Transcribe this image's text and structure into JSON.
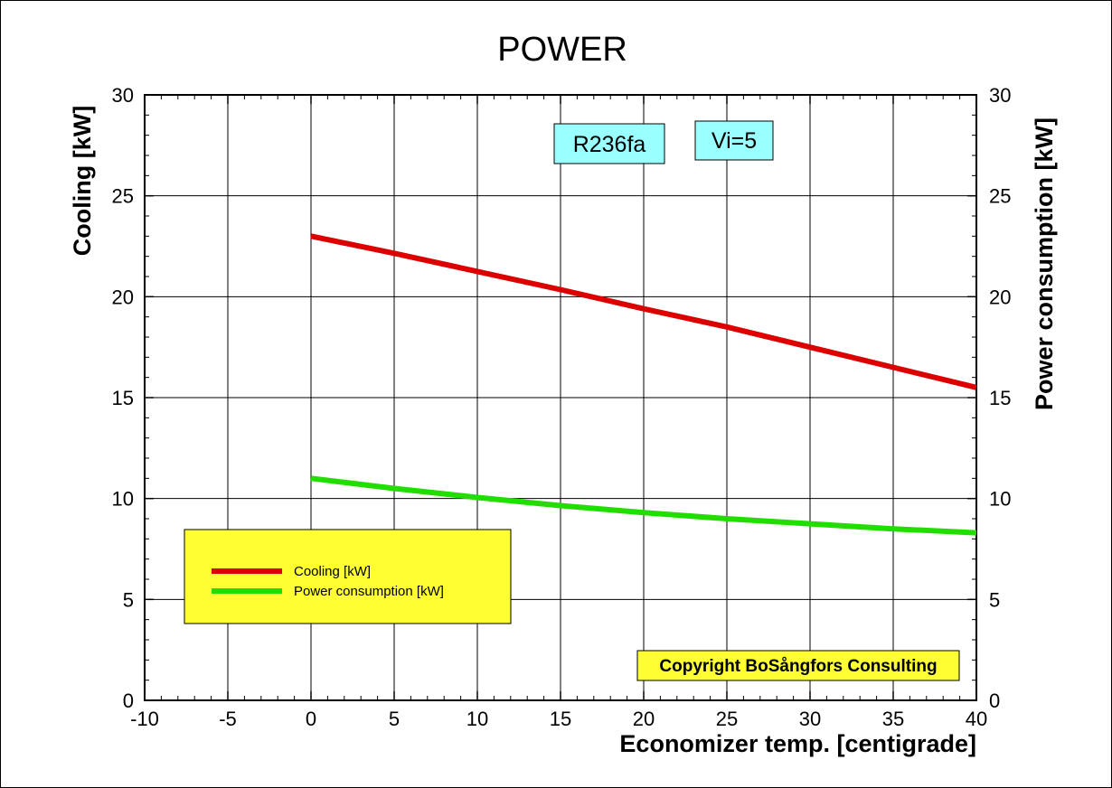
{
  "chart_data": {
    "type": "line",
    "title": "POWER",
    "xlabel": "Economizer temp. [centigrade]",
    "ylabel": "Cooling [kW]",
    "y2label": "Power consumption [kW]",
    "xlim": [
      -10,
      40
    ],
    "ylim": [
      0,
      30
    ],
    "y2lim": [
      0,
      30
    ],
    "x_ticks": [
      -10,
      -5,
      0,
      5,
      10,
      15,
      20,
      25,
      30,
      35,
      40
    ],
    "y_ticks": [
      0,
      5,
      10,
      15,
      20,
      25,
      30
    ],
    "grid": true,
    "legend_position": "bottom-left",
    "series": [
      {
        "name": "Cooling [kW]",
        "color": "#dd0000",
        "x": [
          0,
          5,
          10,
          15,
          20,
          25,
          30,
          35,
          40
        ],
        "values": [
          23.0,
          22.15,
          21.25,
          20.35,
          19.4,
          18.5,
          17.5,
          16.5,
          15.5
        ]
      },
      {
        "name": "Power consumption [kW]",
        "color": "#22dd00",
        "x": [
          0,
          5,
          10,
          15,
          20,
          25,
          30,
          35,
          40
        ],
        "values": [
          11.0,
          10.5,
          10.05,
          9.65,
          9.3,
          9.0,
          8.75,
          8.5,
          8.3
        ]
      }
    ],
    "annotations": [
      {
        "text": "R236fa",
        "color": "#99ffff"
      },
      {
        "text": "Vi=5",
        "color": "#99ffff"
      }
    ],
    "copyright": {
      "text": "Copyright BoSångfors Consulting",
      "color": "#ffff33"
    },
    "legend_background": "#ffff33"
  }
}
